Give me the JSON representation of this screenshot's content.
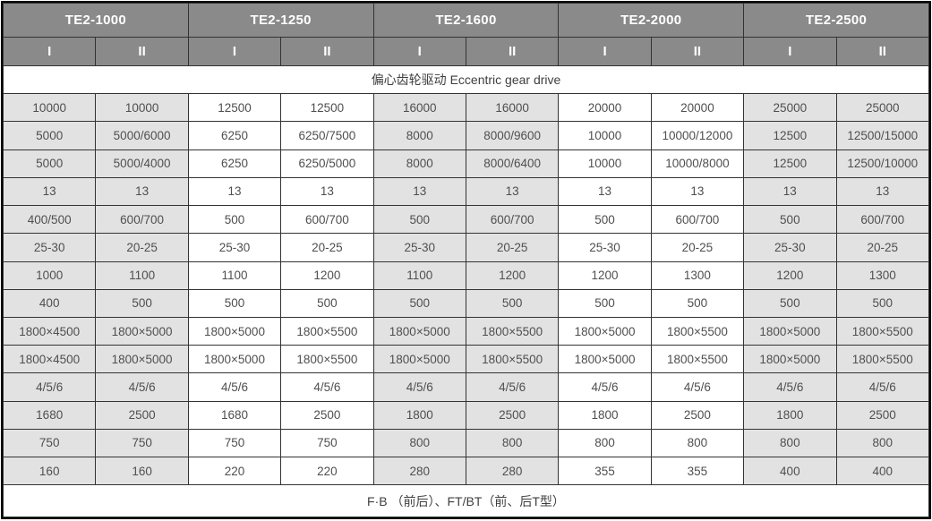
{
  "header": {
    "models": [
      "TE2-1000",
      "TE2-1250",
      "TE2-1600",
      "TE2-2000",
      "TE2-2500"
    ],
    "sub_columns": [
      "I",
      "II"
    ]
  },
  "drive_row_label": "偏心齿轮驱动  Eccentric gear drive",
  "rows": [
    [
      "10000",
      "10000",
      "12500",
      "12500",
      "16000",
      "16000",
      "20000",
      "20000",
      "25000",
      "25000"
    ],
    [
      "5000",
      "5000/6000",
      "6250",
      "6250/7500",
      "8000",
      "8000/9600",
      "10000",
      "10000/12000",
      "12500",
      "12500/15000"
    ],
    [
      "5000",
      "5000/4000",
      "6250",
      "6250/5000",
      "8000",
      "8000/6400",
      "10000",
      "10000/8000",
      "12500",
      "12500/10000"
    ],
    [
      "13",
      "13",
      "13",
      "13",
      "13",
      "13",
      "13",
      "13",
      "13",
      "13"
    ],
    [
      "400/500",
      "600/700",
      "500",
      "600/700",
      "500",
      "600/700",
      "500",
      "600/700",
      "500",
      "600/700"
    ],
    [
      "25-30",
      "20-25",
      "25-30",
      "20-25",
      "25-30",
      "20-25",
      "25-30",
      "20-25",
      "25-30",
      "20-25"
    ],
    [
      "1000",
      "1100",
      "1100",
      "1200",
      "1100",
      "1200",
      "1200",
      "1300",
      "1200",
      "1300"
    ],
    [
      "400",
      "500",
      "500",
      "500",
      "500",
      "500",
      "500",
      "500",
      "500",
      "500"
    ],
    [
      "1800×4500",
      "1800×5000",
      "1800×5000",
      "1800×5500",
      "1800×5000",
      "1800×5500",
      "1800×5000",
      "1800×5500",
      "1800×5000",
      "1800×5500"
    ],
    [
      "1800×4500",
      "1800×5000",
      "1800×5000",
      "1800×5500",
      "1800×5000",
      "1800×5500",
      "1800×5000",
      "1800×5500",
      "1800×5000",
      "1800×5500"
    ],
    [
      "4/5/6",
      "4/5/6",
      "4/5/6",
      "4/5/6",
      "4/5/6",
      "4/5/6",
      "4/5/6",
      "4/5/6",
      "4/5/6",
      "4/5/6"
    ],
    [
      "1680",
      "2500",
      "1680",
      "2500",
      "1800",
      "2500",
      "1800",
      "2500",
      "1800",
      "2500"
    ],
    [
      "750",
      "750",
      "750",
      "750",
      "800",
      "800",
      "800",
      "800",
      "800",
      "800"
    ],
    [
      "160",
      "160",
      "220",
      "220",
      "280",
      "280",
      "355",
      "355",
      "400",
      "400"
    ]
  ],
  "footer_label": "F·B （前后）、FT/BT（前、后T型）",
  "colors": {
    "outer_border": "#000000",
    "grid_line": "#333333",
    "header_bg": "#8a8a8a",
    "header_text": "#ffffff",
    "shaded_cell_bg": "#e2e2e2",
    "plain_cell_bg": "#ffffff",
    "cell_text": "#4f4f4f"
  }
}
